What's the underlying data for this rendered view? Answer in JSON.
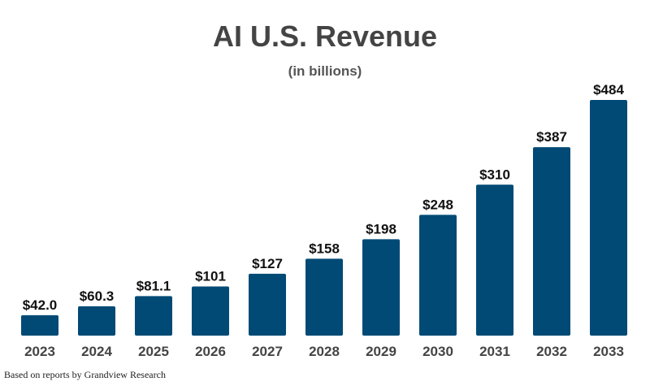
{
  "chart_data": {
    "type": "bar",
    "title": "AI U.S. Revenue",
    "subtitle": "(in billions)",
    "categories": [
      "2023",
      "2024",
      "2025",
      "2026",
      "2027",
      "2028",
      "2029",
      "2030",
      "2031",
      "2032",
      "2033"
    ],
    "values": [
      42.0,
      60.3,
      81.1,
      101,
      127,
      158,
      198,
      248,
      310,
      387,
      484
    ],
    "data_labels": [
      "$42.0",
      "$60.3",
      "$81.1",
      "$101",
      "$127",
      "$158",
      "$198",
      "$248",
      "$310",
      "$387",
      "$484"
    ],
    "xlabel": "",
    "ylabel": "",
    "ylim": [
      0,
      484
    ],
    "grid": false,
    "bar_color": "#004a75",
    "source_note": "Based on reports by Grandview Research"
  }
}
